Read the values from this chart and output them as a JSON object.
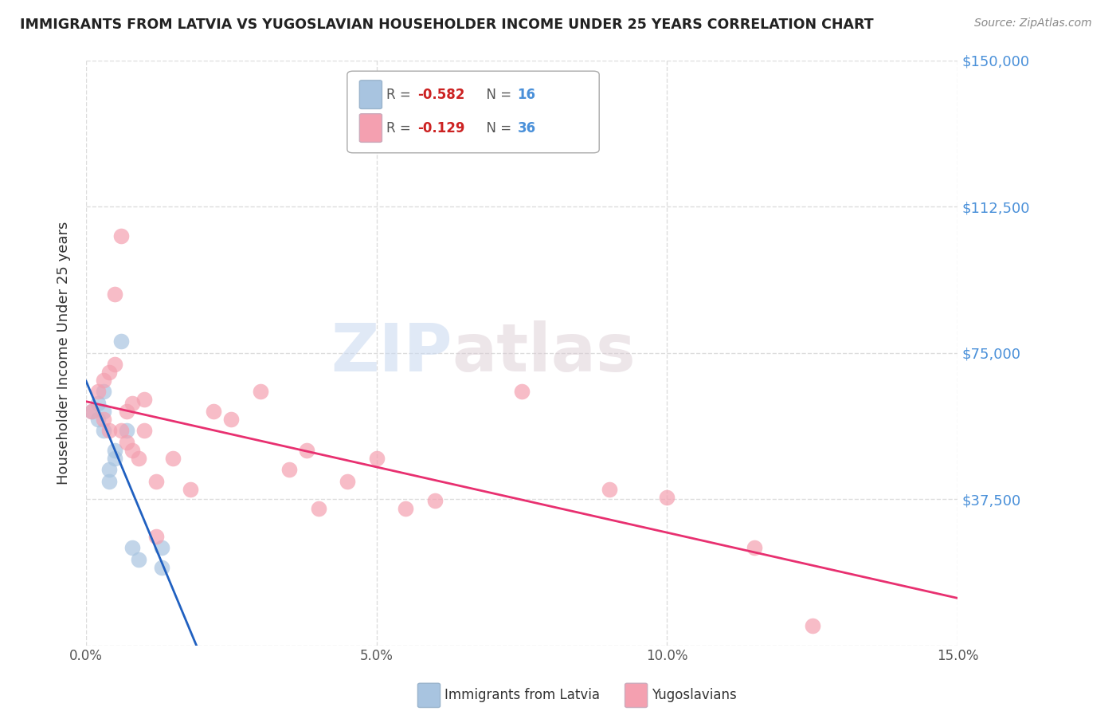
{
  "title": "IMMIGRANTS FROM LATVIA VS YUGOSLAVIAN HOUSEHOLDER INCOME UNDER 25 YEARS CORRELATION CHART",
  "source": "Source: ZipAtlas.com",
  "ylabel": "Householder Income Under 25 years",
  "xlim": [
    0.0,
    0.15
  ],
  "ylim": [
    0,
    150000
  ],
  "yticks": [
    0,
    37500,
    75000,
    112500,
    150000
  ],
  "ytick_labels": [
    "",
    "$37,500",
    "$75,000",
    "$112,500",
    "$150,000"
  ],
  "xticks": [
    0.0,
    0.05,
    0.1,
    0.15
  ],
  "xtick_labels": [
    "0.0%",
    "5.0%",
    "10.0%",
    "15.0%"
  ],
  "grid_color": "#dddddd",
  "background_color": "#ffffff",
  "legend_R_latvia": "-0.582",
  "legend_N_latvia": "16",
  "legend_R_yugo": "-0.129",
  "legend_N_yugo": "36",
  "latvia_color": "#a8c4e0",
  "yugo_color": "#f4a0b0",
  "latvia_line_color": "#2060c0",
  "yugo_line_color": "#e83070",
  "dashed_line_color": "#b0b0b0",
  "watermark_zip": "ZIP",
  "watermark_atlas": "atlas",
  "right_tick_color": "#4a90d9",
  "latvia_x": [
    0.001,
    0.002,
    0.002,
    0.003,
    0.003,
    0.003,
    0.004,
    0.004,
    0.005,
    0.005,
    0.006,
    0.007,
    0.008,
    0.009,
    0.013,
    0.013
  ],
  "latvia_y": [
    60000,
    62000,
    58000,
    65000,
    55000,
    60000,
    45000,
    42000,
    48000,
    50000,
    78000,
    55000,
    25000,
    22000,
    25000,
    20000
  ],
  "yugo_x": [
    0.001,
    0.002,
    0.003,
    0.003,
    0.004,
    0.004,
    0.005,
    0.005,
    0.006,
    0.006,
    0.007,
    0.007,
    0.008,
    0.008,
    0.009,
    0.01,
    0.01,
    0.012,
    0.012,
    0.015,
    0.018,
    0.022,
    0.025,
    0.03,
    0.035,
    0.038,
    0.04,
    0.045,
    0.05,
    0.055,
    0.06,
    0.075,
    0.09,
    0.1,
    0.115,
    0.125
  ],
  "yugo_y": [
    60000,
    65000,
    58000,
    68000,
    70000,
    55000,
    90000,
    72000,
    105000,
    55000,
    60000,
    52000,
    50000,
    62000,
    48000,
    55000,
    63000,
    42000,
    28000,
    48000,
    40000,
    60000,
    58000,
    65000,
    45000,
    50000,
    35000,
    42000,
    48000,
    35000,
    37000,
    65000,
    40000,
    38000,
    25000,
    5000
  ]
}
